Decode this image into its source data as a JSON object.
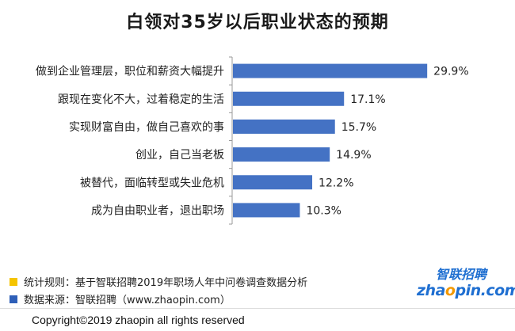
{
  "chart_data": {
    "type": "bar",
    "orientation": "horizontal",
    "title": "白领对35岁以后职业状态的预期",
    "categories": [
      "做到企业管理层，职位和薪资大幅提升",
      "跟现在变化不大，过着稳定的生活",
      "实现财富自由，做自己喜欢的事",
      "创业，自己当老板",
      "被替代，面临转型或失业危机",
      "成为自由职业者，退出职场"
    ],
    "values": [
      29.9,
      17.1,
      15.7,
      14.9,
      12.2,
      10.3
    ],
    "value_labels": [
      "29.9%",
      "17.1%",
      "15.7%",
      "14.9%",
      "12.2%",
      "10.3%"
    ],
    "unit": "%",
    "xlim": [
      0,
      35
    ],
    "bar_color": "#4472c4",
    "grid": false,
    "legend": "none"
  },
  "footer": {
    "rule_label": "统计规则：基于智联招聘2019年职场人年中问卷调查数据分析",
    "source_label": "数据来源：智联招聘（www.zhaopin.com）",
    "rule_color": "#f5c400",
    "source_color": "#2e5fb8"
  },
  "logo": {
    "cn": "智联招聘",
    "en_prefix": "zha",
    "en_o": "o",
    "en_suffix": "pin.com"
  },
  "copyright": "Copyright©2019 zhaopin all rights reserved"
}
